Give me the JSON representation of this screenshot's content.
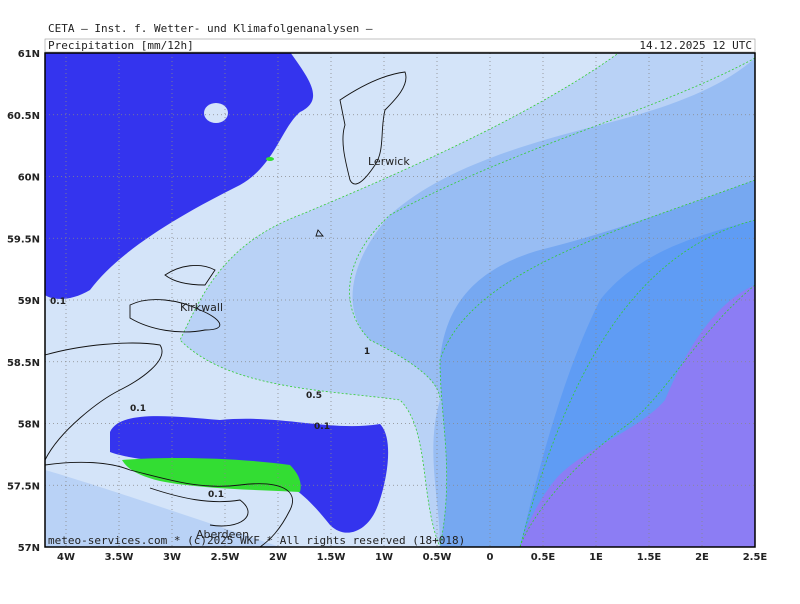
{
  "header": {
    "title": "CETA — Inst. f. Wetter- und Klimafolgenanalysen —",
    "product": "Precipitation [mm/12h]",
    "valid": "14.12.2025 12 UTC"
  },
  "map": {
    "lat_labels": [
      "61N",
      "60.5N",
      "60N",
      "59.5N",
      "59N",
      "58.5N",
      "58N",
      "57.5N",
      "57N"
    ],
    "lon_labels": [
      "4W",
      "3.5W",
      "3W",
      "2.5W",
      "2W",
      "1.5W",
      "1W",
      "0.5W",
      "0",
      "0.5E",
      "1E",
      "1.5E",
      "2E",
      "2.5E"
    ],
    "contour_labels": [
      "0.1",
      "0.1",
      "0.1",
      "0.1",
      "0.5",
      "1"
    ],
    "places": [
      "Lerwick",
      "Kirkwall",
      "Aberdeen"
    ]
  },
  "footer": "meteo-services.com * (c)2025 WKF * All rights reserved (18+018)"
}
